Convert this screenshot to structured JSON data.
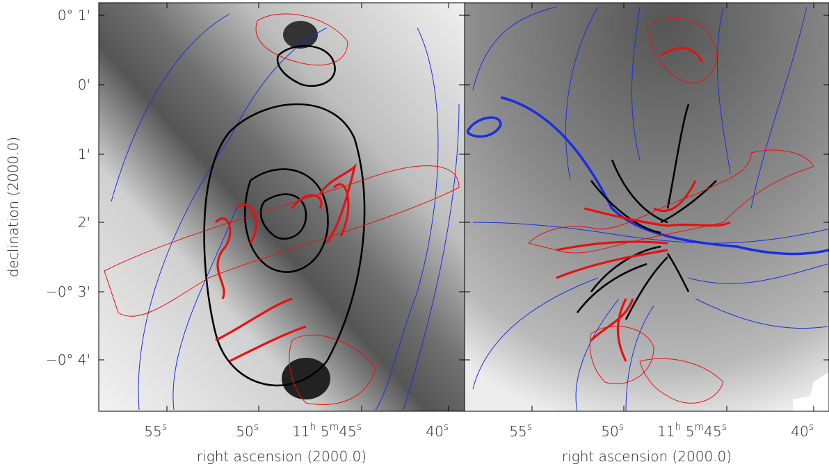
{
  "y_axis": {
    "label": "declination (2000.0)",
    "ticks": [
      "0° 1'",
      "0'",
      "1'",
      "2'",
      "−0° 3'",
      "−0° 4'"
    ]
  },
  "panels": [
    {
      "x_label": "right ascension (2000.0)",
      "x_ticks": [
        [
          "55",
          "s"
        ],
        [
          "50",
          "s"
        ],
        [
          "11",
          "h",
          " 5",
          "m",
          "45",
          "s"
        ],
        [
          "40",
          "s"
        ]
      ]
    },
    {
      "x_label": "right ascension (2000.0)",
      "x_ticks": [
        [
          "55",
          "s"
        ],
        [
          "50",
          "s"
        ],
        [
          "11",
          "h",
          " 5",
          "m",
          "45",
          "s"
        ],
        [
          "40",
          "s"
        ]
      ]
    }
  ]
}
